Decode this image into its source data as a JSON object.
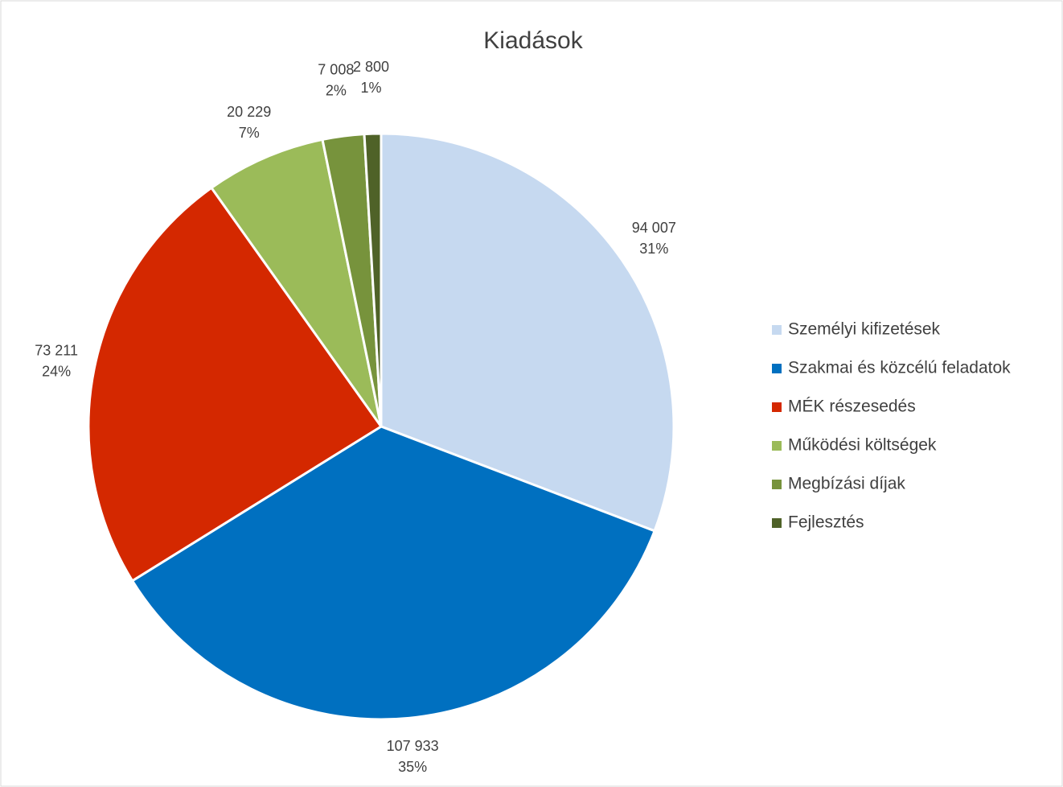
{
  "chart_data": {
    "type": "pie",
    "title": "Kiadások",
    "categories": [
      "Személyi kifizetések",
      "Szakmai és közcélú feladatok",
      "MÉK részesedés",
      "Működési költségek",
      "Megbízási díjak",
      "Fejlesztés"
    ],
    "values": [
      94007,
      107933,
      73211,
      20229,
      7008,
      2800
    ],
    "value_labels": [
      "94 007",
      "107 933",
      "73 211",
      "20 229",
      "7 008",
      "2 800"
    ],
    "percentages": [
      31,
      35,
      24,
      7,
      2,
      1
    ],
    "percent_labels": [
      "31%",
      "35%",
      "24%",
      "7%",
      "2%",
      "1%"
    ],
    "colors": [
      "#c6d9f0",
      "#0070c0",
      "#d42800",
      "#9bbb59",
      "#77933c",
      "#4f6228"
    ],
    "legend": "right"
  }
}
